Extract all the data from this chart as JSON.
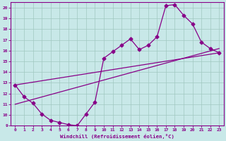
{
  "xlabel": "Windchill (Refroidissement éolien,°C)",
  "xlim": [
    -0.5,
    23.5
  ],
  "ylim": [
    9,
    20.5
  ],
  "xticks": [
    0,
    1,
    2,
    3,
    4,
    5,
    6,
    7,
    8,
    9,
    10,
    11,
    12,
    13,
    14,
    15,
    16,
    17,
    18,
    19,
    20,
    21,
    22,
    23
  ],
  "yticks": [
    9,
    10,
    11,
    12,
    13,
    14,
    15,
    16,
    17,
    18,
    19,
    20
  ],
  "bg_color": "#c8e8e8",
  "line_color": "#880088",
  "grid_color": "#a0c8c0",
  "line1_x": [
    0,
    1,
    2,
    3,
    4,
    5,
    6,
    7,
    8,
    9,
    10,
    11,
    12,
    13,
    14,
    15,
    16,
    17,
    18,
    19,
    20,
    21,
    22,
    23
  ],
  "line1_y": [
    12.8,
    11.7,
    11.1,
    10.1,
    9.5,
    9.3,
    9.1,
    9.0,
    10.1,
    11.2,
    15.3,
    15.9,
    16.5,
    17.1,
    16.1,
    16.5,
    17.3,
    20.2,
    20.3,
    19.3,
    18.5,
    16.8,
    16.2,
    15.8
  ],
  "line2_x": [
    0,
    23
  ],
  "line2_y": [
    12.8,
    15.8
  ],
  "line3_x": [
    0,
    23
  ],
  "line3_y": [
    11.0,
    16.2
  ]
}
